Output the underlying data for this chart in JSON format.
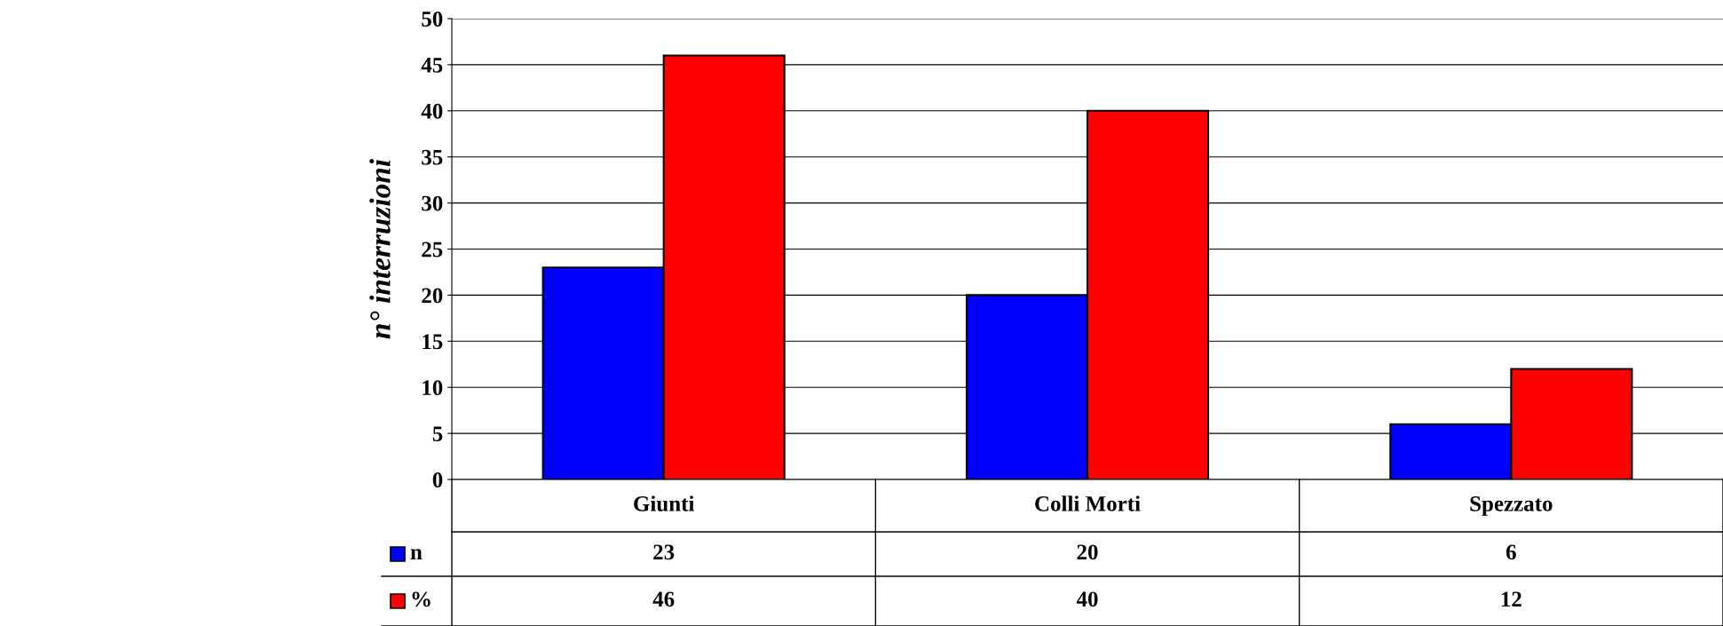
{
  "chart_data": {
    "type": "bar",
    "ylabel": "n° interruzioni",
    "categories": [
      "Giunti",
      "Colli Morti",
      "Spezzato"
    ],
    "series": [
      {
        "name": "n",
        "color": "#0000ff",
        "values": [
          23,
          20,
          6
        ]
      },
      {
        "name": "%",
        "color": "#ff0000",
        "values": [
          46,
          40,
          12
        ]
      }
    ],
    "ylim": [
      0,
      50
    ],
    "yticks": [
      0,
      5,
      10,
      15,
      20,
      25,
      30,
      35,
      40,
      45,
      50
    ],
    "grid": "y",
    "legend": "bottom left",
    "data_labels": true
  }
}
